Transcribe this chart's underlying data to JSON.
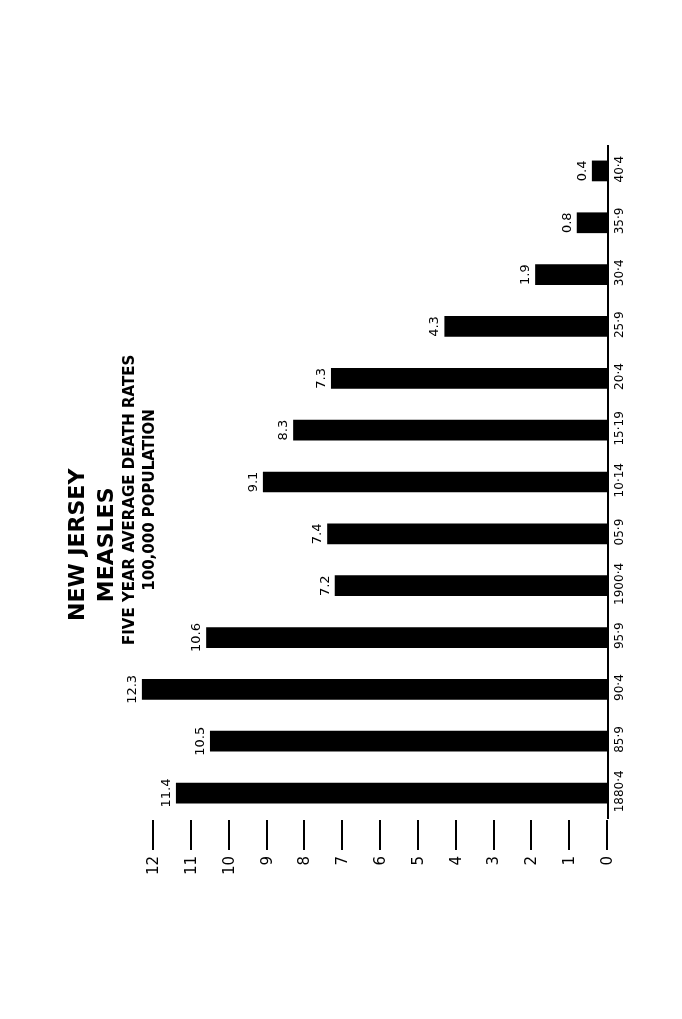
{
  "chart_data": {
    "type": "bar",
    "orientation": "horizontal",
    "title": "NEW JERSEY\nMEASLES",
    "subtitle": "FIVE YEAR AVERAGE DEATH RATES\n100,000 POPULATION",
    "categories": [
      "40·4",
      "35·9",
      "30·4",
      "25·9",
      "20·4",
      "15·19",
      "10·14",
      "05·9",
      "1900·4",
      "95·9",
      "90·4",
      "85·9",
      "1880·4"
    ],
    "values": [
      0.4,
      0.8,
      1.9,
      4.3,
      7.3,
      8.3,
      9.1,
      7.4,
      7.2,
      10.6,
      12.3,
      10.5,
      11.4
    ],
    "color": "#000000",
    "data_labels": true,
    "xlim": [
      12.35,
      0
    ],
    "xticks": [
      0,
      1,
      2,
      3,
      4,
      5,
      6,
      7,
      8,
      9,
      10,
      11,
      12
    ],
    "legend": false
  }
}
